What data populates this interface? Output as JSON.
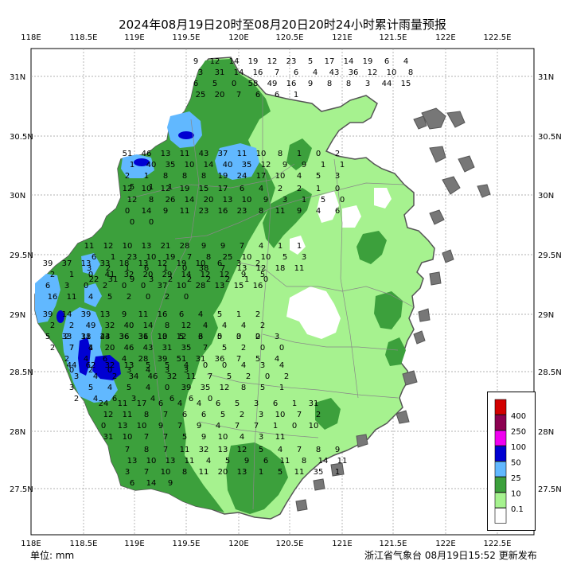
{
  "title": "2024年08月19日20时至08月20日20时24小时累计雨量预报",
  "unit_label": "单位: mm",
  "footer": "浙江省气象台 08月19日15:52 更新发布",
  "axes": {
    "lon_labels": [
      "118E",
      "118.5E",
      "119E",
      "119.5E",
      "120E",
      "120.5E",
      "121E",
      "121.5E",
      "122E",
      "122.5E"
    ],
    "lat_labels": [
      "31N",
      "30.5N",
      "30N",
      "29.5N",
      "29N",
      "28.5N",
      "28N",
      "27.5N"
    ]
  },
  "legend": [
    {
      "label": "400",
      "color": "#d20000"
    },
    {
      "label": "250",
      "color": "#8c0050"
    },
    {
      "label": "100",
      "color": "#f000f0"
    },
    {
      "label": "50",
      "color": "#0000d2"
    },
    {
      "label": "25",
      "color": "#61b8ff"
    },
    {
      "label": "10",
      "color": "#3ca03c"
    },
    {
      "label": "0.1",
      "color": "#a6f28f"
    },
    {
      "label": "",
      "color": "#ffffff"
    }
  ],
  "station_values": [
    [
      "9",
      "12",
      "14",
      "19",
      "12",
      "23",
      "5",
      "17",
      "14",
      "19",
      "6",
      "4",
      "3",
      "31",
      "14",
      "16",
      "7",
      "6",
      "4",
      "43",
      "36",
      "12",
      "10",
      "8",
      "6",
      "5",
      "0",
      "58",
      "49",
      "16",
      "9",
      "8",
      "8",
      "3",
      "44",
      "15",
      "25",
      "20",
      "7",
      "6",
      "6",
      "1"
    ],
    [
      "51",
      "46",
      "13",
      "11",
      "43",
      "37",
      "11",
      "10",
      "8",
      "1",
      "0",
      "2",
      "1",
      "40",
      "35",
      "10",
      "14",
      "40",
      "35",
      "12",
      "9",
      "9",
      "1",
      "1",
      "2",
      "1",
      "8",
      "8",
      "8",
      "19",
      "24",
      "17",
      "10",
      "4",
      "5",
      "3",
      "5",
      "1",
      "1"
    ],
    [
      "12",
      "10",
      "12",
      "19",
      "15",
      "17",
      "6",
      "4",
      "2",
      "2",
      "1",
      "0",
      "12",
      "8",
      "26",
      "14",
      "20",
      "13",
      "10",
      "9",
      "3",
      "1",
      "5",
      "0",
      "0",
      "14",
      "9",
      "11",
      "23",
      "16",
      "23",
      "8",
      "11",
      "9",
      "4",
      "6",
      "0",
      "0"
    ],
    [
      "11",
      "12",
      "10",
      "13",
      "21",
      "28",
      "9",
      "9",
      "7",
      "4",
      "1",
      "1",
      "6",
      "1",
      "23",
      "10",
      "19",
      "7",
      "8",
      "25",
      "10",
      "10",
      "5",
      "3",
      "3",
      "2",
      "1",
      "6",
      "1",
      "0",
      "38",
      "7",
      "13",
      "12",
      "18",
      "11",
      "22",
      "31",
      "9",
      "3",
      "2",
      "2",
      "2",
      "2",
      "1",
      "0"
    ],
    [
      "39",
      "37",
      "13",
      "33",
      "18",
      "13",
      "12",
      "19",
      "10",
      "6",
      "3",
      "2",
      "2",
      "1",
      "0",
      "41",
      "32",
      "20",
      "29",
      "14",
      "12",
      "12",
      "9",
      "5",
      "6",
      "3",
      "0",
      "2",
      "0",
      "0",
      "37",
      "10",
      "28",
      "13",
      "15",
      "16",
      "16",
      "11",
      "4",
      "5",
      "2",
      "0",
      "2",
      "0"
    ],
    [
      "39",
      "14",
      "39",
      "13",
      "9",
      "11",
      "16",
      "6",
      "4",
      "5",
      "1",
      "2",
      "2",
      "2",
      "49",
      "32",
      "40",
      "14",
      "8",
      "12",
      "4",
      "4",
      "4",
      "2",
      "5",
      "2",
      "18",
      "44",
      "36",
      "36",
      "13",
      "12",
      "6",
      "5",
      "3",
      "2",
      "2",
      "7",
      "1"
    ],
    [
      "33",
      "31",
      "23",
      "36",
      "31",
      "10",
      "5",
      "3",
      "0",
      "0",
      "0",
      "3",
      "7",
      "4",
      "20",
      "46",
      "43",
      "31",
      "35",
      "7",
      "5",
      "2",
      "0",
      "0",
      "2",
      "4",
      "6",
      "4",
      "28",
      "39",
      "51",
      "31",
      "36",
      "7",
      "5",
      "4",
      "0",
      "2",
      "0",
      "3",
      "4",
      "3",
      "3"
    ],
    [
      "44",
      "62",
      "32",
      "13",
      "5",
      "5",
      "4",
      "0",
      "0",
      "4",
      "3",
      "4",
      "3",
      "4",
      "2",
      "34",
      "46",
      "32",
      "11",
      "7",
      "5",
      "2",
      "0",
      "2",
      "3",
      "5",
      "4",
      "5",
      "4",
      "0",
      "39",
      "35",
      "12",
      "8",
      "5",
      "1",
      "2",
      "4",
      "6",
      "3",
      "4",
      "6",
      "6",
      "0"
    ],
    [
      "24",
      "11",
      "17",
      "6",
      "4",
      "4",
      "6",
      "5",
      "3",
      "6",
      "1",
      "31",
      "12",
      "11",
      "8",
      "7",
      "6",
      "6",
      "5",
      "2",
      "3",
      "10",
      "7",
      "2",
      "0",
      "13",
      "10",
      "9",
      "7",
      "9",
      "4",
      "7",
      "7",
      "1",
      "0",
      "10",
      "31",
      "10",
      "7",
      "7",
      "5",
      "9",
      "10",
      "4",
      "3",
      "11"
    ],
    [
      "7",
      "8",
      "7",
      "11",
      "32",
      "13",
      "12",
      "5",
      "4",
      "7",
      "8",
      "9",
      "13",
      "10",
      "13",
      "11",
      "4",
      "5",
      "9",
      "6",
      "11",
      "8",
      "14",
      "11",
      "3",
      "7",
      "10",
      "8",
      "11",
      "20",
      "13",
      "1",
      "5",
      "11",
      "35",
      "1",
      "6",
      "14",
      "9"
    ]
  ]
}
